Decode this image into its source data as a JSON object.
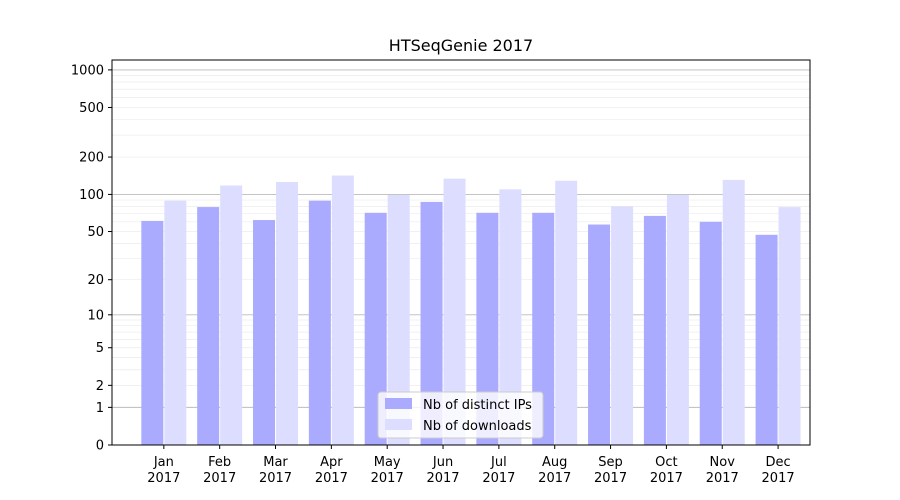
{
  "chart_data": {
    "type": "bar",
    "title": "HTSeqGenie 2017",
    "categories": [
      [
        "Jan",
        "2017"
      ],
      [
        "Feb",
        "2017"
      ],
      [
        "Mar",
        "2017"
      ],
      [
        "Apr",
        "2017"
      ],
      [
        "May",
        "2017"
      ],
      [
        "Jun",
        "2017"
      ],
      [
        "Jul",
        "2017"
      ],
      [
        "Aug",
        "2017"
      ],
      [
        "Sep",
        "2017"
      ],
      [
        "Oct",
        "2017"
      ],
      [
        "Nov",
        "2017"
      ],
      [
        "Dec",
        "2017"
      ]
    ],
    "series": [
      {
        "name": "Nb of distinct IPs",
        "color": "#aaaaff",
        "values": [
          61,
          79,
          62,
          89,
          71,
          87,
          71,
          71,
          57,
          67,
          60,
          47
        ]
      },
      {
        "name": "Nb of downloads",
        "color": "#ddddff",
        "values": [
          89,
          118,
          126,
          142,
          99,
          134,
          110,
          129,
          80,
          99,
          131,
          79
        ]
      }
    ],
    "yscale": "log(1+y)",
    "ylim": [
      0,
      1200
    ],
    "yticks": [
      0,
      1,
      2,
      5,
      10,
      20,
      50,
      100,
      200,
      500,
      1000
    ],
    "major_gridlines": [
      1,
      10,
      100,
      1000
    ],
    "legend": "lower-center",
    "grid": true
  }
}
